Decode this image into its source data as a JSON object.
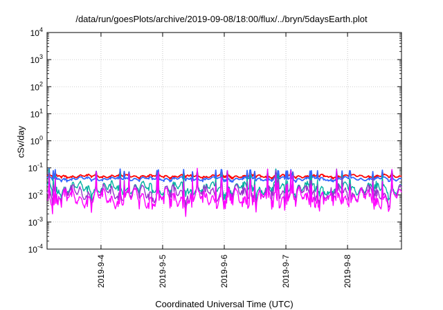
{
  "chart_data": {
    "type": "line",
    "title": "/data/run/goesPlots/archive/2019-09-08/18:00/flux/../bryn/5daysEarth.plot",
    "xlabel": "Coordinated Universal Time (UTC)",
    "ylabel": "cSv/day",
    "y_scale": "log",
    "ylim_exponents": [
      -4,
      4
    ],
    "y_tick_base": "10",
    "y_tick_exponents": [
      "-4",
      "-3",
      "-2",
      "-1",
      "0",
      "1",
      "2",
      "3",
      "4"
    ],
    "xlim": [
      "2019-09-03 03:00",
      "2019-09-08 21:00"
    ],
    "x_ticks": [
      {
        "label": "2019-9-4",
        "date": "2019-09-04 00:00"
      },
      {
        "label": "2019-9-5",
        "date": "2019-09-05 00:00"
      },
      {
        "label": "2019-9-6",
        "date": "2019-09-06 00:00"
      },
      {
        "label": "2019-9-7",
        "date": "2019-09-07 00:00"
      },
      {
        "label": "2019-9-8",
        "date": "2019-09-08 00:00"
      }
    ],
    "grid": true,
    "series": [
      {
        "color": "#ff0000",
        "baseline": 0.05,
        "amplitude": 0.25,
        "spikes": 0.3
      },
      {
        "color": "#3366ff",
        "baseline": 0.04,
        "amplitude": 0.3,
        "spikes": 0.6
      },
      {
        "color": "#00b0a0",
        "baseline": 0.018,
        "amplitude": 1.0,
        "spikes": 0.9
      },
      {
        "color": "#9933cc",
        "baseline": 0.012,
        "amplitude": 1.3,
        "spikes": 1.2
      },
      {
        "color": "#ff00ff",
        "baseline": 0.008,
        "amplitude": 1.5,
        "spikes": 1.5
      }
    ]
  }
}
